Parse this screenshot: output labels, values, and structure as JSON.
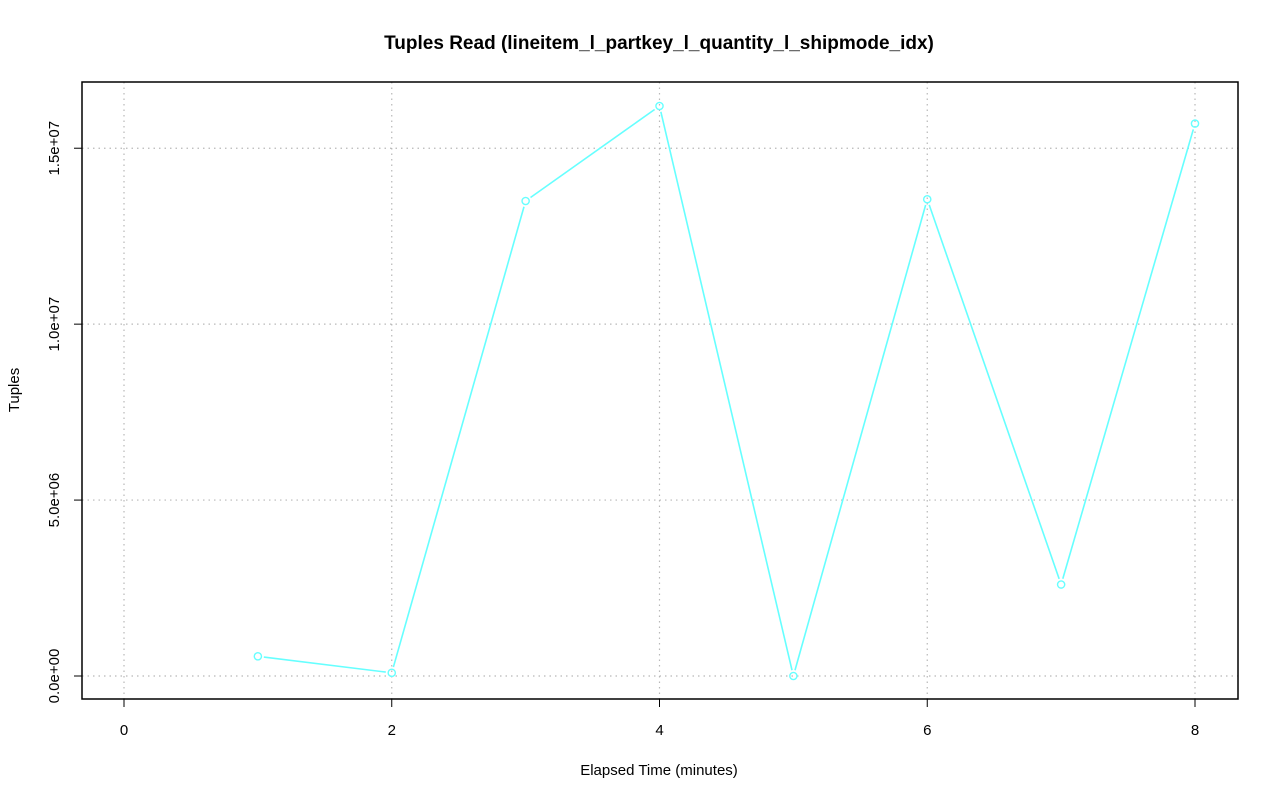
{
  "chart_data": {
    "type": "line",
    "title": "Tuples Read (lineitem_l_partkey_l_quantity_l_shipmode_idx)",
    "xlabel": "Elapsed Time (minutes)",
    "ylabel": "Tuples",
    "xlim": [
      0,
      8
    ],
    "ylim": [
      0,
      16200000
    ],
    "x_ticks": [
      0,
      2,
      4,
      6,
      8
    ],
    "x_tick_labels": [
      "0",
      "2",
      "4",
      "6",
      "8"
    ],
    "y_ticks": [
      0,
      5000000,
      10000000,
      15000000
    ],
    "y_tick_labels": [
      "0.0e+00",
      "5.0e+06",
      "1.0e+07",
      "1.5e+07"
    ],
    "grid": true,
    "x": [
      1,
      2,
      3,
      4,
      5,
      6,
      7,
      8
    ],
    "series": [
      {
        "values": [
          560000,
          90000,
          13500000,
          16200000,
          0,
          13550000,
          2600000,
          15700000
        ],
        "color": "#66ffff"
      }
    ]
  }
}
